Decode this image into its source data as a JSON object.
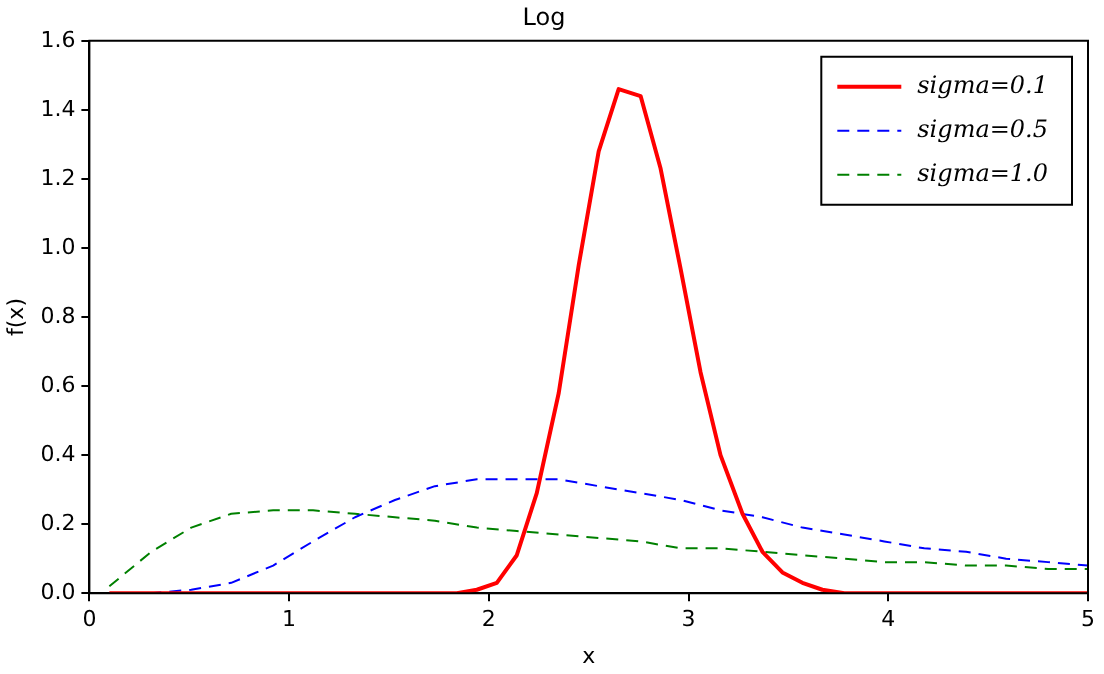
{
  "chart_data": {
    "type": "line",
    "title": "Log",
    "xlabel": "x",
    "ylabel": "f(x)",
    "xlim": [
      0,
      5
    ],
    "xticks": [
      0,
      1,
      2,
      3,
      4,
      5
    ],
    "ylim": [
      0,
      1.6
    ],
    "yticks": [
      {
        "value": 0,
        "label": "0.0"
      },
      {
        "value": 0.2,
        "label": "0.2"
      },
      {
        "value": 0.4,
        "label": "0.4"
      },
      {
        "value": 0.6,
        "label": "0.6"
      },
      {
        "value": 0.8,
        "label": "0.8"
      },
      {
        "value": 1,
        "label": "1.0"
      },
      {
        "value": 1.2,
        "label": "1.2"
      },
      {
        "value": 1.4,
        "label": "1.4"
      },
      {
        "value": 1.6,
        "label": "1.6"
      }
    ],
    "grid": false,
    "legend": "top right",
    "marker": "none",
    "series": [
      {
        "name": "sigma=0.1",
        "color": "#ff0000",
        "line_style": "solid",
        "x": [
          0.1,
          1.84,
          1.94,
          2.04,
          2.14,
          2.24,
          2.35,
          2.45,
          2.55,
          2.65,
          2.76,
          2.86,
          2.96,
          3.06,
          3.16,
          3.27,
          3.37,
          3.47,
          3.57,
          3.67,
          3.78,
          3.88,
          3.98,
          5.0
        ],
        "values": [
          0,
          0,
          0.01,
          0.03,
          0.11,
          0.29,
          0.58,
          0.95,
          1.28,
          1.46,
          1.44,
          1.23,
          0.94,
          0.64,
          0.4,
          0.23,
          0.12,
          0.06,
          0.03,
          0.01,
          0,
          0,
          0,
          0
        ]
      },
      {
        "name": "sigma=0.5",
        "color": "#0000ff",
        "line_style": "dashed",
        "x": [
          0.1,
          0.31,
          0.51,
          0.71,
          0.92,
          1.12,
          1.33,
          1.53,
          1.73,
          1.94,
          2.14,
          2.35,
          2.55,
          2.76,
          2.96,
          3.16,
          3.37,
          3.57,
          3.78,
          3.98,
          4.18,
          4.39,
          4.59,
          4.8,
          5.0
        ],
        "values": [
          0,
          0,
          0.01,
          0.03,
          0.08,
          0.15,
          0.22,
          0.27,
          0.31,
          0.33,
          0.33,
          0.33,
          0.31,
          0.29,
          0.27,
          0.24,
          0.22,
          0.19,
          0.17,
          0.15,
          0.13,
          0.12,
          0.1,
          0.09,
          0.08
        ]
      },
      {
        "name": "sigma=1.0",
        "color": "#008000",
        "line_style": "dashed",
        "x": [
          0.1,
          0.31,
          0.51,
          0.71,
          0.92,
          1.12,
          1.33,
          1.53,
          1.73,
          1.94,
          2.14,
          2.35,
          2.55,
          2.76,
          2.96,
          3.16,
          3.37,
          3.57,
          3.78,
          3.98,
          4.18,
          4.39,
          4.59,
          4.8,
          5.0
        ],
        "values": [
          0.02,
          0.12,
          0.19,
          0.23,
          0.24,
          0.24,
          0.23,
          0.22,
          0.21,
          0.19,
          0.18,
          0.17,
          0.16,
          0.15,
          0.13,
          0.13,
          0.12,
          0.11,
          0.1,
          0.09,
          0.09,
          0.08,
          0.08,
          0.07,
          0.07
        ]
      }
    ]
  }
}
